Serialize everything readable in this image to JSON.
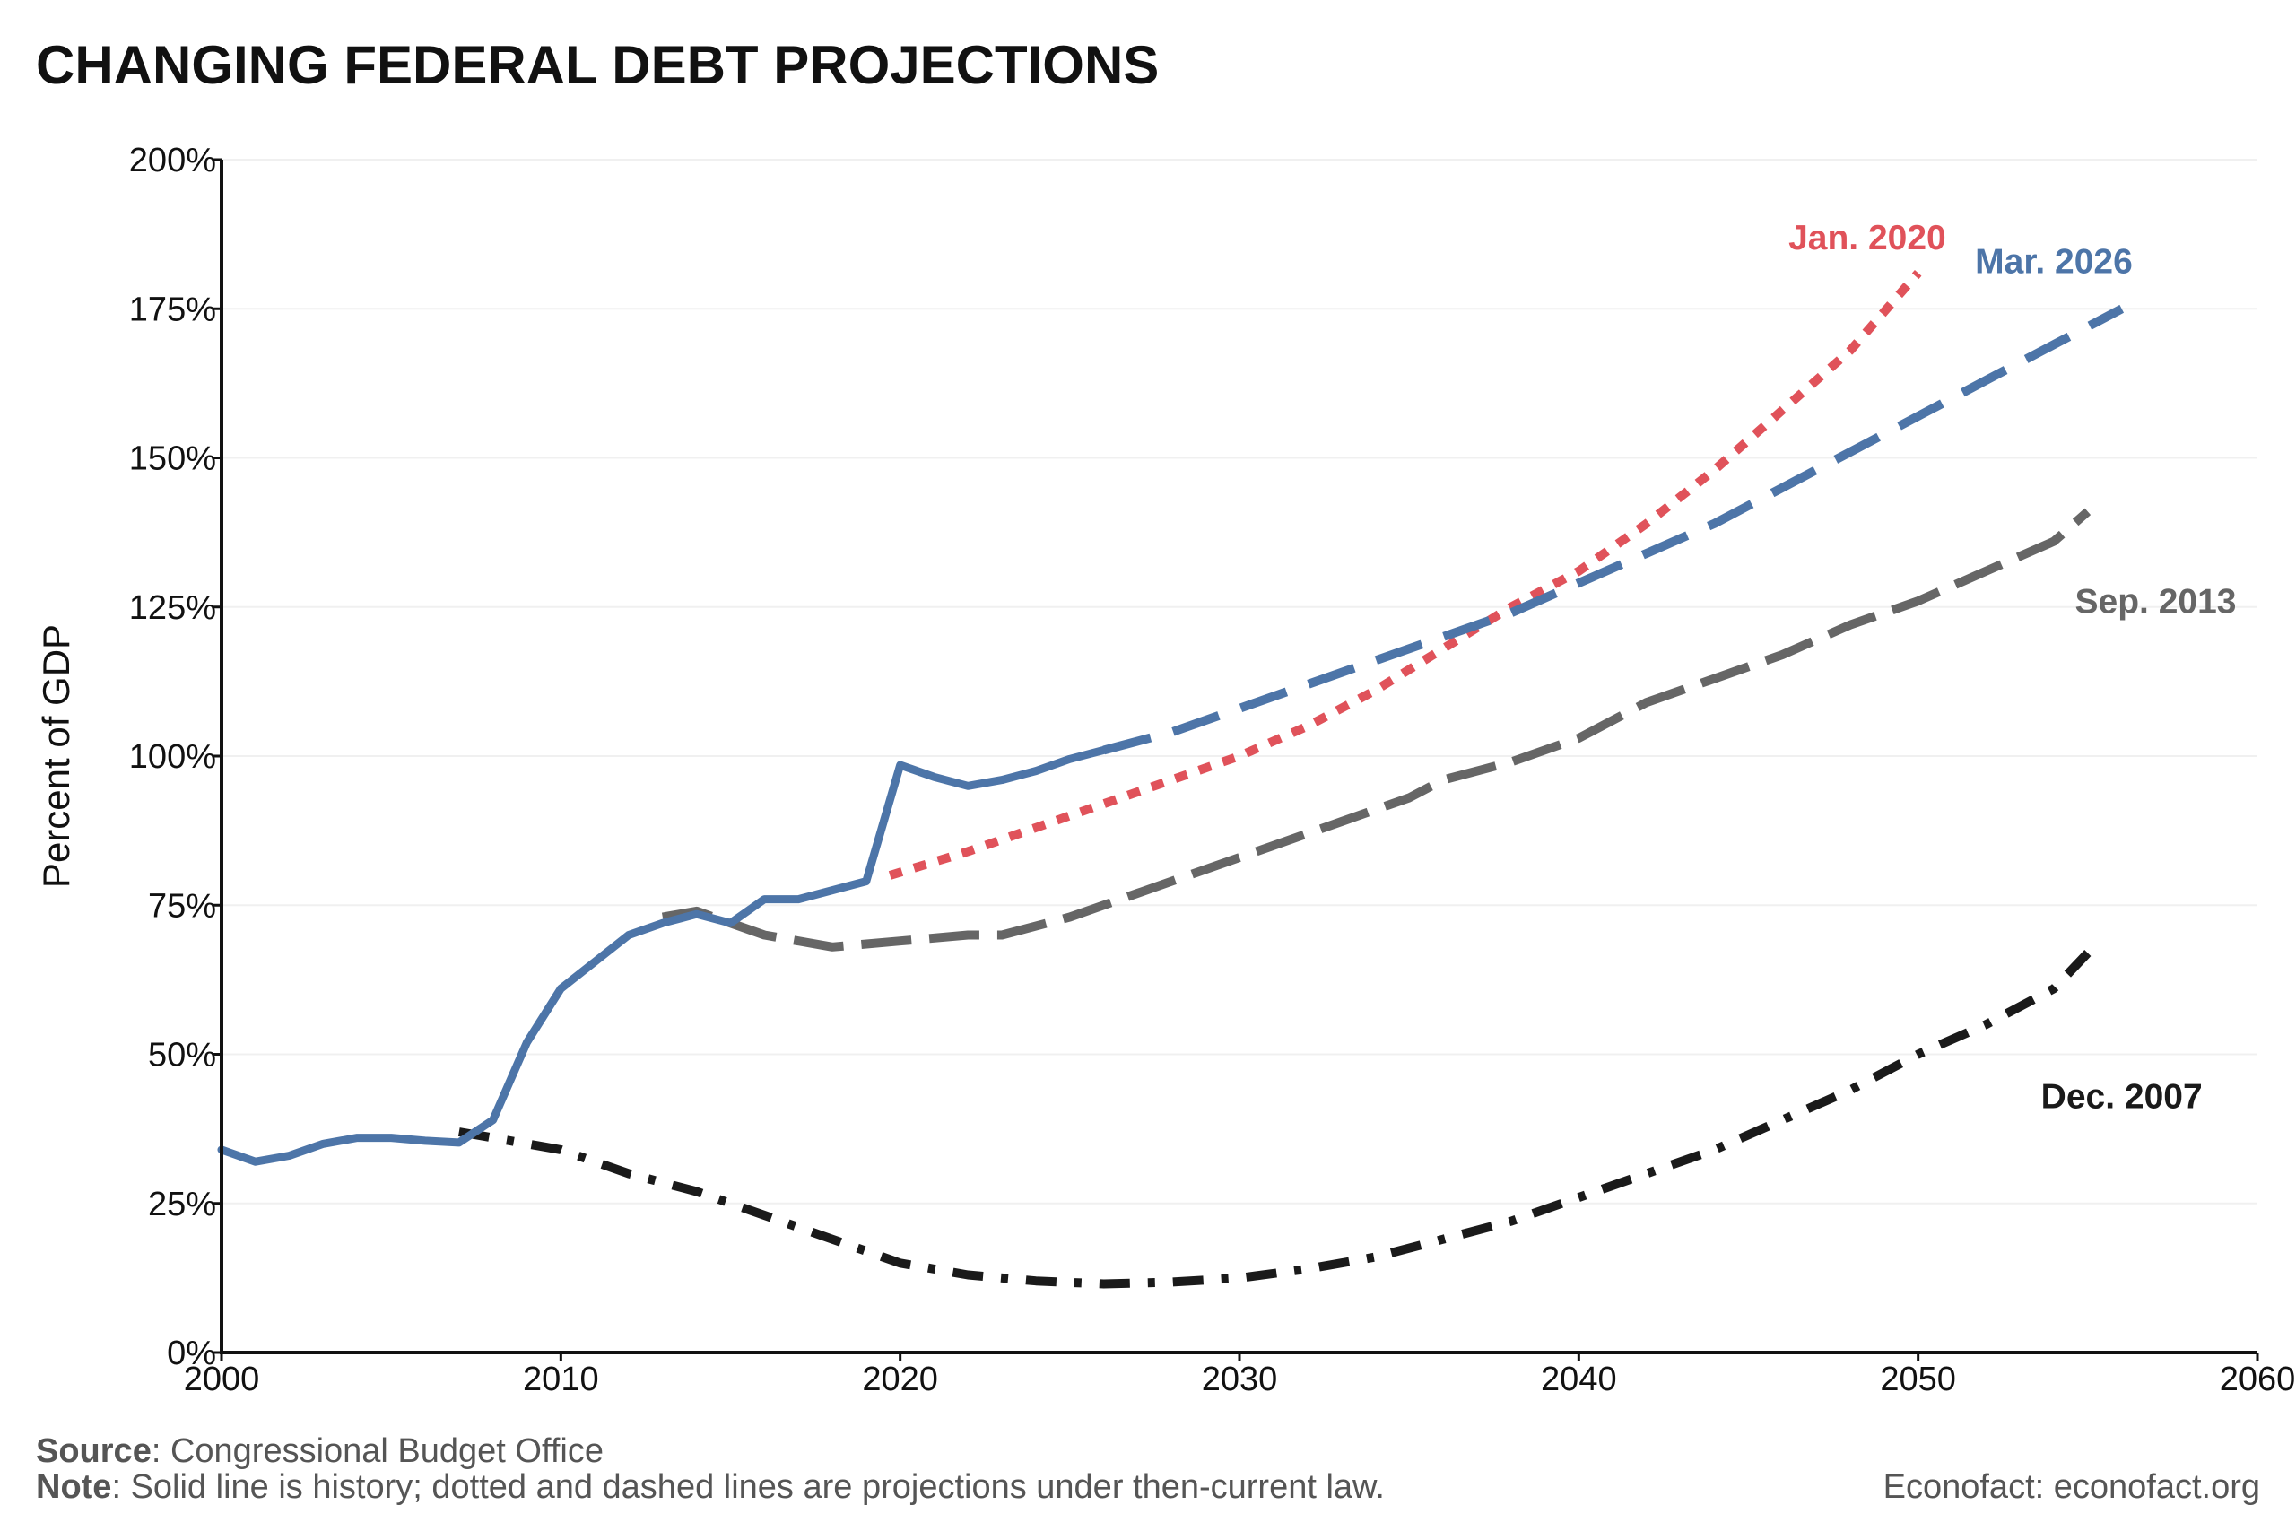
{
  "title": "CHANGING FEDERAL DEBT PROJECTIONS",
  "footer": {
    "source_label": "Source",
    "source_text": ": Congressional Budget Office",
    "note_label": "Note",
    "note_text": ": Solid line is history; dotted and dashed lines are projections under then-current law.",
    "credit": "Econofact: econofact.org"
  },
  "chart_data": {
    "type": "line",
    "title": "CHANGING FEDERAL DEBT PROJECTIONS",
    "xlabel": "",
    "ylabel": "Percent of GDP",
    "xlim": [
      2000,
      2060
    ],
    "ylim": [
      0,
      200
    ],
    "x_ticks": [
      2000,
      2010,
      2020,
      2030,
      2040,
      2050,
      2060
    ],
    "y_ticks": [
      0,
      25,
      50,
      75,
      100,
      125,
      150,
      175,
      200
    ],
    "y_tick_labels": [
      "0%",
      "25%",
      "50%",
      "75%",
      "100%",
      "125%",
      "150%",
      "175%",
      "200%"
    ],
    "grid": "horizontal-light",
    "legend": "none (direct labels)",
    "series": [
      {
        "name": "Dec. 2007",
        "style": "dash-dot",
        "color": "#1a1a1a",
        "label_at": [
          2056,
          41
        ],
        "points": [
          [
            2007,
            37
          ],
          [
            2008,
            36
          ],
          [
            2010,
            34
          ],
          [
            2012,
            30
          ],
          [
            2014,
            27
          ],
          [
            2016,
            23
          ],
          [
            2018,
            19
          ],
          [
            2020,
            15
          ],
          [
            2022,
            13
          ],
          [
            2024,
            12
          ],
          [
            2026,
            11.5
          ],
          [
            2028,
            11.8
          ],
          [
            2030,
            12.5
          ],
          [
            2032,
            14
          ],
          [
            2034,
            16
          ],
          [
            2036,
            19
          ],
          [
            2038,
            22
          ],
          [
            2040,
            26
          ],
          [
            2042,
            30
          ],
          [
            2044,
            34
          ],
          [
            2046,
            39
          ],
          [
            2048,
            44
          ],
          [
            2050,
            50
          ],
          [
            2052,
            55
          ],
          [
            2054,
            61
          ],
          [
            2055,
            67
          ]
        ]
      },
      {
        "name": "Sep. 2013",
        "style": "long-dash",
        "color": "#666666",
        "label_at": [
          2057,
          124
        ],
        "points": [
          [
            2013,
            73
          ],
          [
            2014,
            74
          ],
          [
            2016,
            70
          ],
          [
            2018,
            68
          ],
          [
            2020,
            69
          ],
          [
            2022,
            70
          ],
          [
            2023,
            70
          ],
          [
            2025,
            73
          ],
          [
            2027,
            77
          ],
          [
            2029,
            81
          ],
          [
            2031,
            85
          ],
          [
            2033,
            89
          ],
          [
            2035,
            93
          ],
          [
            2036,
            96
          ],
          [
            2038,
            99
          ],
          [
            2040,
            103
          ],
          [
            2041,
            106
          ],
          [
            2042,
            109
          ],
          [
            2044,
            113
          ],
          [
            2046,
            117
          ],
          [
            2048,
            122
          ],
          [
            2050,
            126
          ],
          [
            2052,
            131
          ],
          [
            2054,
            136
          ],
          [
            2055,
            141
          ]
        ]
      },
      {
        "name": "Jan. 2020",
        "style": "dotted",
        "color": "#e0525a",
        "label_at": [
          2048.5,
          185
        ],
        "points": [
          [
            2019.7,
            80
          ],
          [
            2022,
            84
          ],
          [
            2024,
            88
          ],
          [
            2026,
            92
          ],
          [
            2028,
            96
          ],
          [
            2030,
            100
          ],
          [
            2032,
            105
          ],
          [
            2034,
            111
          ],
          [
            2036,
            118
          ],
          [
            2038,
            125
          ],
          [
            2040,
            131
          ],
          [
            2042,
            139
          ],
          [
            2044,
            148
          ],
          [
            2046,
            158
          ],
          [
            2048,
            168
          ],
          [
            2050,
            181
          ]
        ]
      },
      {
        "name": "Mar. 2026",
        "style": "dashed",
        "color": "#4d75a8",
        "label_at": [
          2054,
          181
        ],
        "points": [
          [
            2026,
            101
          ],
          [
            2028,
            104
          ],
          [
            2030,
            108
          ],
          [
            2032,
            112
          ],
          [
            2034,
            116
          ],
          [
            2036,
            120
          ],
          [
            2038,
            124
          ],
          [
            2040,
            129
          ],
          [
            2042,
            134
          ],
          [
            2044,
            139
          ],
          [
            2046,
            145
          ],
          [
            2048,
            151
          ],
          [
            2050,
            157
          ],
          [
            2052,
            163
          ],
          [
            2054,
            169
          ],
          [
            2056,
            175
          ]
        ]
      },
      {
        "name": "",
        "style": "solid",
        "color": "#4d75a8",
        "points": [
          [
            2000,
            34
          ],
          [
            2001,
            32
          ],
          [
            2002,
            33
          ],
          [
            2003,
            35
          ],
          [
            2004,
            36
          ],
          [
            2005,
            36
          ],
          [
            2006,
            35.5
          ],
          [
            2007,
            35.2
          ],
          [
            2008,
            39
          ],
          [
            2009,
            52
          ],
          [
            2010,
            61
          ],
          [
            2011,
            65.5
          ],
          [
            2012,
            70
          ],
          [
            2013,
            72
          ],
          [
            2014,
            73.5
          ],
          [
            2015,
            72
          ],
          [
            2016,
            76
          ],
          [
            2017,
            76
          ],
          [
            2018,
            77.5
          ],
          [
            2019,
            79
          ],
          [
            2020,
            98.5
          ],
          [
            2021,
            96.5
          ],
          [
            2022,
            95
          ],
          [
            2023,
            96
          ],
          [
            2024,
            97.5
          ],
          [
            2025,
            99.5
          ],
          [
            2026,
            101
          ]
        ]
      }
    ]
  }
}
